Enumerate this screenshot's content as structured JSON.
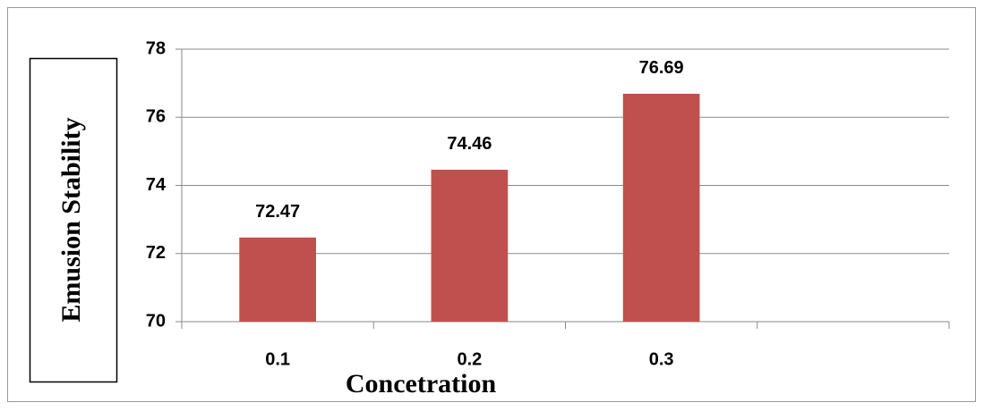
{
  "chart_data": {
    "type": "bar",
    "x_label": "Concetration",
    "y_label": "Emusion Stability",
    "categories": [
      "0.1",
      "0.2",
      "0.3",
      null
    ],
    "values": [
      72.47,
      74.46,
      76.69,
      null
    ],
    "color": "#c0504d",
    "ylim": [
      70,
      78
    ],
    "yticks": [
      70,
      72,
      74,
      76,
      78
    ],
    "grid": true
  }
}
